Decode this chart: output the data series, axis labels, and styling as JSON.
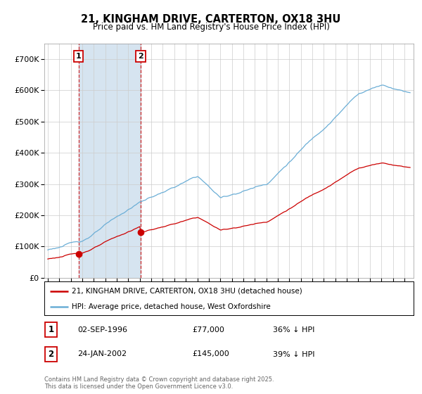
{
  "title1": "21, KINGHAM DRIVE, CARTERTON, OX18 3HU",
  "title2": "Price paid vs. HM Land Registry's House Price Index (HPI)",
  "legend_line1": "21, KINGHAM DRIVE, CARTERTON, OX18 3HU (detached house)",
  "legend_line2": "HPI: Average price, detached house, West Oxfordshire",
  "purchase1_date": "02-SEP-1996",
  "purchase1_price": "£77,000",
  "purchase1_hpi": "36% ↓ HPI",
  "purchase1_year": 1996.67,
  "purchase1_value": 77000,
  "purchase2_date": "24-JAN-2002",
  "purchase2_price": "£145,000",
  "purchase2_hpi": "39% ↓ HPI",
  "purchase2_year": 2002.07,
  "purchase2_value": 145000,
  "hpi_color": "#6baed6",
  "price_color": "#cc0000",
  "hatch_color": "#d6e4f0",
  "plot_bg": "#ffffff",
  "copyright": "Contains HM Land Registry data © Crown copyright and database right 2025.\nThis data is licensed under the Open Government Licence v3.0.",
  "xmin": 1993.7,
  "xmax": 2025.8,
  "ymin": 0,
  "ymax": 750000
}
